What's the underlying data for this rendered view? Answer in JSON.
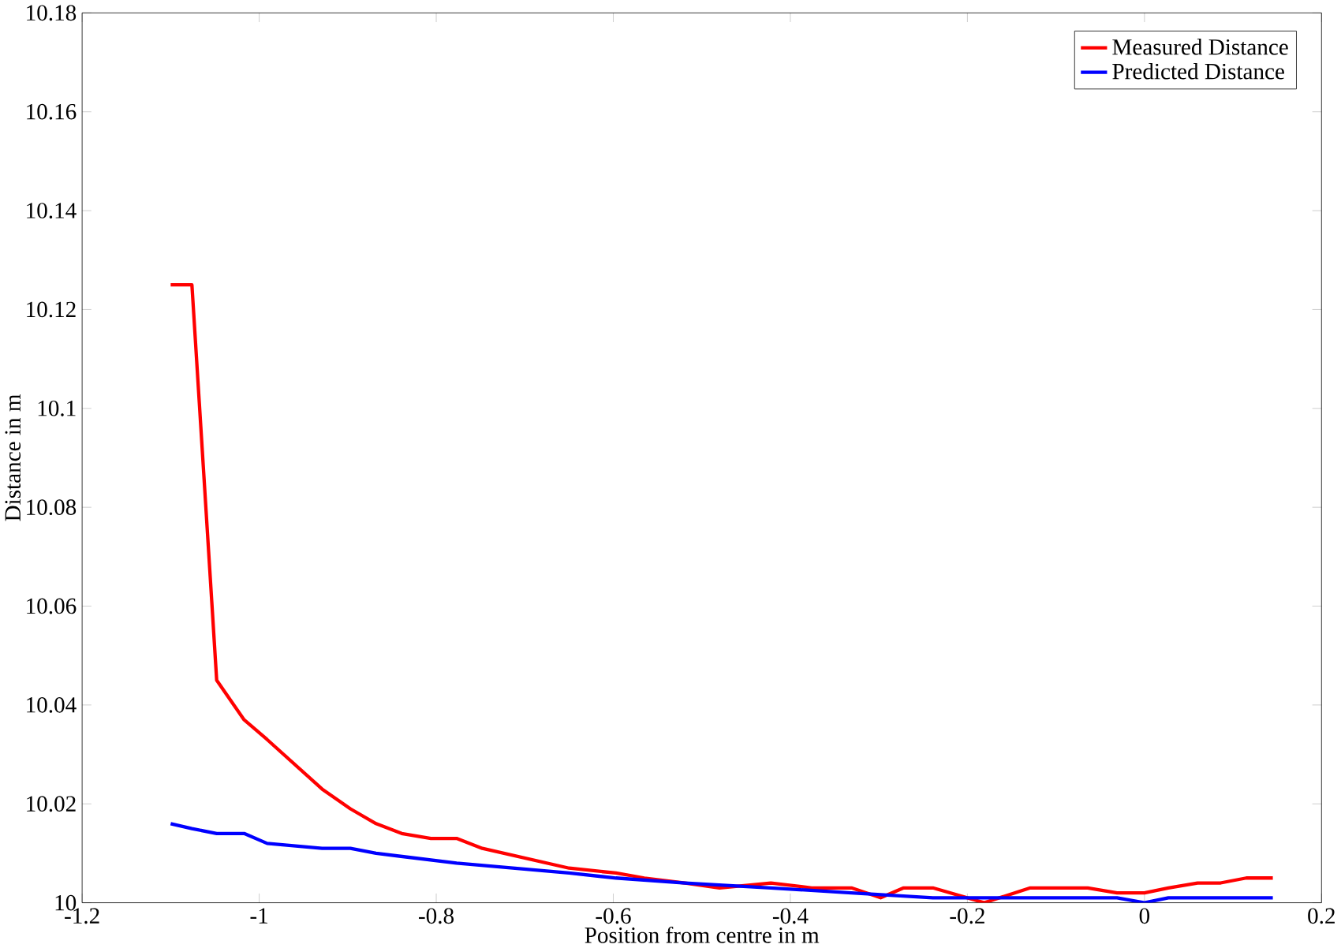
{
  "chart_data": {
    "type": "line",
    "xlabel": "Position from centre in m",
    "ylabel": "Distance in m",
    "xlim": [
      -1.2,
      0.2
    ],
    "ylim": [
      10,
      10.18
    ],
    "xticks": [
      -1.2,
      -1,
      -0.8,
      -0.6,
      -0.4,
      -0.2,
      0,
      0.2
    ],
    "yticks": [
      10,
      10.02,
      10.04,
      10.06,
      10.08,
      10.1,
      10.12,
      10.14,
      10.16,
      10.18
    ],
    "legend": "top right",
    "grid": false,
    "marker": "none",
    "line_style": "solid",
    "series": [
      {
        "name": "Measured Distance",
        "color": "#ff0000",
        "x": [
          -1.1,
          -1.076,
          -1.048,
          -1.017,
          -0.991,
          -0.929,
          -0.897,
          -0.868,
          -0.839,
          -0.806,
          -0.777,
          -0.748,
          -0.65,
          -0.597,
          -0.565,
          -0.519,
          -0.48,
          -0.422,
          -0.376,
          -0.331,
          -0.298,
          -0.272,
          -0.239,
          -0.181,
          -0.129,
          -0.09,
          -0.064,
          -0.031,
          0,
          0.027,
          0.06,
          0.086,
          0.115,
          0.145
        ],
        "values": [
          10.125,
          10.125,
          10.045,
          10.037,
          10.033,
          10.023,
          10.019,
          10.016,
          10.014,
          10.013,
          10.013,
          10.011,
          10.007,
          10.006,
          10.005,
          10.004,
          10.003,
          10.004,
          10.003,
          10.003,
          10.001,
          10.003,
          10.003,
          10.0,
          10.003,
          10.003,
          10.003,
          10.002,
          10.002,
          10.003,
          10.004,
          10.004,
          10.005,
          10.005
        ]
      },
      {
        "name": "Predicted Distance",
        "color": "#0000ff",
        "x": [
          -1.1,
          -1.076,
          -1.048,
          -1.017,
          -0.991,
          -0.929,
          -0.897,
          -0.868,
          -0.777,
          -0.65,
          -0.597,
          -0.519,
          -0.422,
          -0.331,
          -0.239,
          -0.181,
          -0.031,
          0,
          0.027,
          0.145
        ],
        "values": [
          10.016,
          10.015,
          10.014,
          10.014,
          10.012,
          10.011,
          10.011,
          10.01,
          10.008,
          10.006,
          10.005,
          10.004,
          10.003,
          10.002,
          10.001,
          10.001,
          10.001,
          10.0,
          10.001,
          10.001
        ]
      }
    ]
  }
}
